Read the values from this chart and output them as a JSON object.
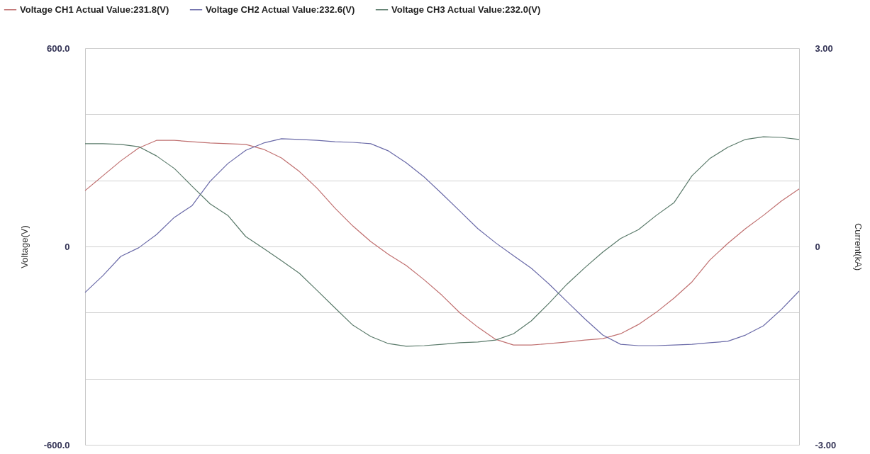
{
  "chart_data": {
    "type": "line",
    "ylabel": "Voltage(V)",
    "y2label": "Current(kA)",
    "legend": "top",
    "grid": "y",
    "line_style": "solid",
    "categories": [
      null,
      null,
      null,
      null,
      null,
      null,
      null,
      null,
      null,
      null,
      null,
      null,
      null,
      null,
      null,
      null,
      null,
      null,
      null,
      null,
      null,
      null,
      null,
      null,
      null,
      null,
      null,
      null,
      null,
      null,
      null,
      null,
      null,
      null,
      null,
      null,
      null,
      null,
      null,
      null,
      null
    ],
    "ylim": [
      -600,
      600
    ],
    "yticks": [
      {
        "value": -600,
        "label": "-600.0"
      },
      {
        "value": -400,
        "label": null
      },
      {
        "value": -200,
        "label": null
      },
      0,
      {
        "value": 200,
        "label": null
      },
      {
        "value": 400,
        "label": null
      },
      {
        "value": 600,
        "label": "600.0"
      }
    ],
    "y2lim": [
      -3,
      3
    ],
    "y2ticks": [
      {
        "value": -3,
        "label": "-3.00"
      },
      0,
      {
        "value": 3,
        "label": "3.00"
      }
    ],
    "series": [
      {
        "name": "Voltage CH1   Actual Value:231.8(V)",
        "color": "#c07070",
        "values": [
          169,
          214,
          259,
          298,
          321,
          321,
          317,
          313,
          311,
          309,
          294,
          268,
          227,
          176,
          116,
          62,
          15,
          -24,
          -58,
          -101,
          -148,
          -201,
          -244,
          -281,
          -298,
          -298,
          -294,
          -289,
          -283,
          -279,
          -264,
          -236,
          -199,
          -156,
          -107,
          -41,
          9,
          54,
          94,
          137,
          174
        ]
      },
      {
        "name": "Voltage CH2   Actual Value:232.6(V)",
        "color": "#6a6aa8",
        "values": [
          -139,
          -88,
          -30,
          -4,
          36,
          88,
          124,
          197,
          251,
          291,
          313,
          326,
          324,
          321,
          317,
          315,
          311,
          289,
          253,
          210,
          159,
          107,
          54,
          11,
          -28,
          -66,
          -114,
          -167,
          -219,
          -268,
          -296,
          -300,
          -300,
          -298,
          -296,
          -291,
          -287,
          -268,
          -240,
          -191,
          -135
        ]
      },
      {
        "name": "Voltage CH3   Actual Value:232.0(V)",
        "color": "#5a7a6a",
        "values": [
          311,
          311,
          309,
          302,
          274,
          236,
          182,
          129,
          94,
          30,
          -6,
          -43,
          -81,
          -133,
          -186,
          -238,
          -272,
          -294,
          -302,
          -300,
          -296,
          -291,
          -289,
          -283,
          -264,
          -225,
          -171,
          -114,
          -64,
          -17,
          24,
          51,
          94,
          133,
          214,
          266,
          300,
          324,
          332,
          330,
          324
        ]
      }
    ]
  }
}
